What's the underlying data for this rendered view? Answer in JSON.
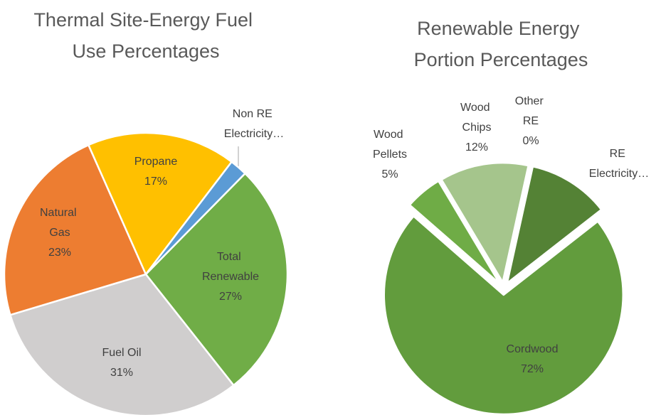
{
  "chart_data": [
    {
      "type": "pie",
      "title": "Thermal Site-Energy Fuel Use Percentages",
      "categories": [
        "Total Renewable",
        "Fuel Oil",
        "Natural Gas",
        "Propane",
        "Non RE Electricity…"
      ],
      "values": [
        27,
        31,
        23,
        17,
        2
      ],
      "value_labels": [
        "27%",
        "31%",
        "23%",
        "17%",
        null
      ],
      "colors": [
        "#70ad47",
        "#d0cece",
        "#ed7d31",
        "#ffc000",
        "#5b9bd5"
      ]
    },
    {
      "type": "pie",
      "title": "Renewable Energy Portion Percentages",
      "categories": [
        "Cordwood",
        "Wood Pellets",
        "Wood Chips",
        "Other RE",
        "RE Electricity…"
      ],
      "values": [
        72,
        5,
        12,
        0,
        11
      ],
      "value_labels": [
        "72%",
        "5%",
        "12%",
        "0%",
        null
      ],
      "colors": [
        "#629c3d",
        "#6fac46",
        "#a5c58c",
        "#c2d9b0",
        "#548235"
      ]
    }
  ]
}
